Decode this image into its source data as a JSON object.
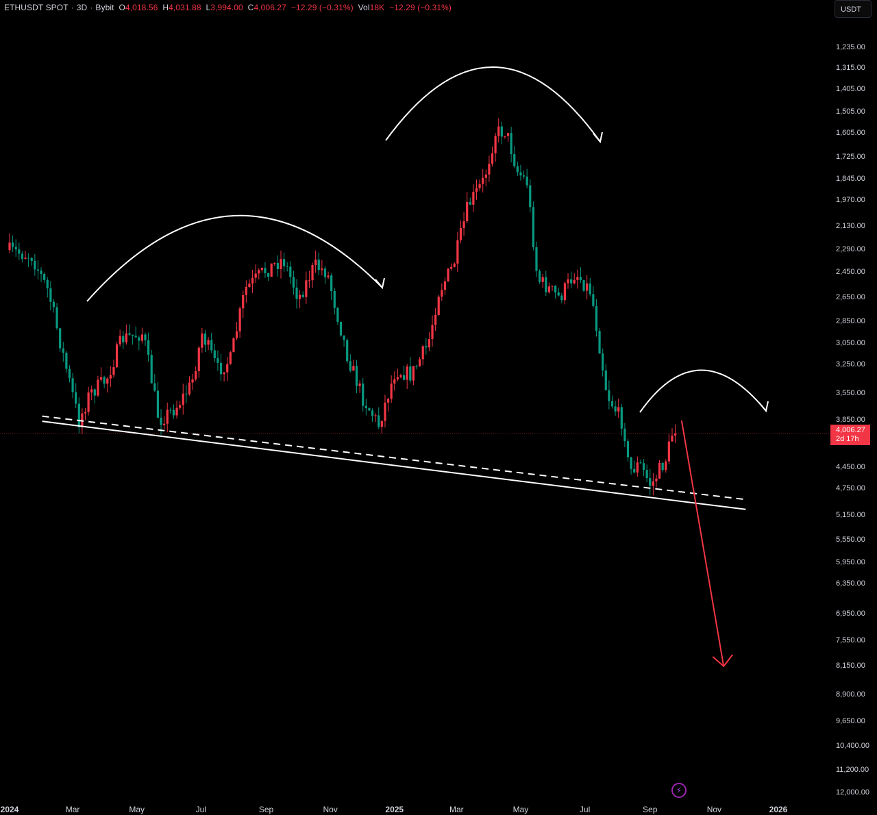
{
  "legend": {
    "symbol": "ETHUSDT SPOT",
    "interval": "3D",
    "exchange": "Bybit",
    "open_label": "O",
    "open": "4,018.56",
    "high_label": "H",
    "high": "4,031.88",
    "low_label": "L",
    "low": "3,994.00",
    "close_label": "C",
    "close": "4,006.27",
    "change": "−12.29 (−0.31%)",
    "vol_label": "Vol",
    "vol": "18K",
    "vol_change": "−12.29 (−0.31%)"
  },
  "currency": "USDT",
  "last_price": {
    "value": "4,006.27",
    "countdown": "2d 17h"
  },
  "colors": {
    "up": "#f23645",
    "down": "#089981",
    "background": "#000000",
    "annotation": "#ffffff",
    "target_arrow": "#f23645"
  },
  "icons": {
    "bolt": "lightning-icon"
  },
  "chart_data": {
    "type": "candlestick",
    "symbol": "ETHUSDT SPOT",
    "interval": "3D",
    "exchange": "Bybit",
    "scale": "log-inverted",
    "ylim": [
      1200,
      12000
    ],
    "y_ticks": [
      "1,235.00",
      "1,315.00",
      "1,405.00",
      "1,505.00",
      "1,605.00",
      "1,725.00",
      "1,845.00",
      "1,970.00",
      "2,130.00",
      "2,290.00",
      "2,450.00",
      "2,650.00",
      "2,850.00",
      "3,050.00",
      "3,250.00",
      "3,550.00",
      "3,850.00",
      "4,450.00",
      "4,750.00",
      "5,150.00",
      "5,550.00",
      "5,950.00",
      "6,350.00",
      "6,950.00",
      "7,550.00",
      "8,150.00",
      "8,900.00",
      "9,650.00",
      "10,400.00",
      "11,200.00",
      "12,000.00"
    ],
    "x_ticks": [
      "2024",
      "Mar",
      "May",
      "Jul",
      "Sep",
      "Nov",
      "2025",
      "Mar",
      "May",
      "Jul",
      "Sep",
      "Nov",
      "2026"
    ],
    "x_ticks_bold": [
      "2024",
      "2025",
      "2026"
    ],
    "close_path": [
      [
        "2024-01-01",
        2290
      ],
      [
        "2024-01-25",
        2330
      ],
      [
        "2024-02-10",
        2600
      ],
      [
        "2024-02-25",
        3200
      ],
      [
        "2024-03-10",
        3860
      ],
      [
        "2024-03-20",
        3550
      ],
      [
        "2024-04-05",
        3400
      ],
      [
        "2024-04-20",
        3000
      ],
      [
        "2024-05-10",
        2950
      ],
      [
        "2024-05-25",
        3850
      ],
      [
        "2024-06-10",
        3700
      ],
      [
        "2024-06-25",
        3450
      ],
      [
        "2024-07-05",
        2950
      ],
      [
        "2024-07-20",
        3300
      ],
      [
        "2024-08-01",
        3200
      ],
      [
        "2024-08-15",
        2580
      ],
      [
        "2024-09-01",
        2450
      ],
      [
        "2024-09-20",
        2350
      ],
      [
        "2024-10-05",
        2650
      ],
      [
        "2024-10-20",
        2400
      ],
      [
        "2024-11-01",
        2450
      ],
      [
        "2024-11-20",
        3150
      ],
      [
        "2024-12-05",
        3600
      ],
      [
        "2024-12-20",
        3900
      ],
      [
        "2025-01-05",
        3300
      ],
      [
        "2025-01-20",
        3350
      ],
      [
        "2025-02-05",
        3050
      ],
      [
        "2025-02-15",
        2600
      ],
      [
        "2025-03-01",
        2400
      ],
      [
        "2025-03-15",
        2000
      ],
      [
        "2025-03-30",
        1850
      ],
      [
        "2025-04-10",
        1600
      ],
      [
        "2025-04-20",
        1590
      ],
      [
        "2025-05-01",
        1800
      ],
      [
        "2025-05-10",
        1860
      ],
      [
        "2025-05-20",
        2500
      ],
      [
        "2025-06-10",
        2650
      ],
      [
        "2025-06-25",
        2450
      ],
      [
        "2025-07-10",
        2600
      ],
      [
        "2025-07-25",
        3550
      ],
      [
        "2025-08-10",
        3900
      ],
      [
        "2025-08-15",
        4500
      ],
      [
        "2025-08-25",
        4400
      ],
      [
        "2025-09-05",
        4700
      ],
      [
        "2025-09-20",
        4300
      ],
      [
        "2025-09-25",
        4006.27
      ]
    ],
    "last_close": 4006.27,
    "annotations": {
      "support_line": {
        "from": [
          "2024-02-01",
          3860
        ],
        "to": [
          "2025-12-01",
          5050
        ]
      },
      "dashed_line": {
        "from": [
          "2024-02-01",
          3800
        ],
        "to": [
          "2025-12-01",
          4900
        ]
      },
      "arcs": [
        "left-shoulder",
        "head",
        "right-shoulder"
      ],
      "projection_arrow": {
        "from": [
          "2025-10-01",
          3850
        ],
        "to": [
          "2025-11-10",
          8150
        ]
      }
    }
  }
}
